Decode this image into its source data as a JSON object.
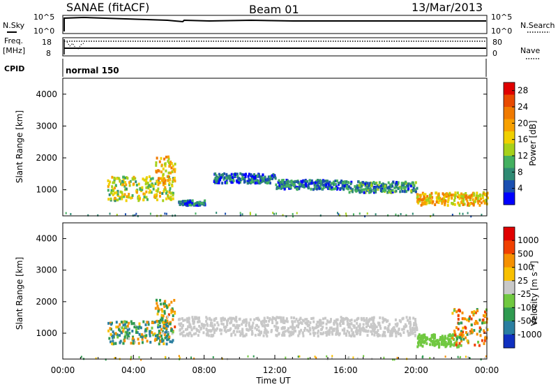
{
  "header": {
    "station": "SANAE (fitACF)",
    "beam": "Beam 01",
    "date": "13/Mar/2013"
  },
  "summary": {
    "nsky_label": "N.Sky",
    "nsearch_label": "N.Search",
    "freq_label": "Freq.",
    "freq_unit": "[MHz]",
    "nave_label": "Nave",
    "cpid_label": "CPID",
    "cpid_value": "normal 150",
    "noise_ticks": [
      "10^5",
      "10^0"
    ],
    "freq_ticks": [
      "18",
      "8"
    ],
    "nave_ticks": [
      "80",
      "0"
    ]
  },
  "chart_data": [
    {
      "type": "heatmap",
      "panel": "power",
      "xlabel": "",
      "ylabel": "Slant Range [km]",
      "xlim": [
        0,
        24
      ],
      "ylim": [
        180,
        4500
      ],
      "yticks": [
        "1000",
        "2000",
        "3000",
        "4000"
      ],
      "colorbar": {
        "label": "Power [dB]",
        "ticks": [
          "4",
          "8",
          "12",
          "16",
          "20",
          "24",
          "28"
        ],
        "colors": [
          "#0000ff",
          "#1a4fb0",
          "#2f8a73",
          "#44b060",
          "#a6d11a",
          "#f0d000",
          "#f7a000",
          "#f07a00",
          "#e84a00",
          "#e00000"
        ]
      },
      "regions": [
        {
          "t": [
            2.5,
            6.2
          ],
          "r": [
            700,
            1450
          ],
          "v": 14
        },
        {
          "t": [
            5.2,
            6.3
          ],
          "r": [
            1200,
            2100
          ],
          "v": 18
        },
        {
          "t": [
            6.5,
            8.0
          ],
          "r": [
            550,
            700
          ],
          "v": 6
        },
        {
          "t": [
            8.5,
            12.0
          ],
          "r": [
            1250,
            1550
          ],
          "v": 5
        },
        {
          "t": [
            12.0,
            16.0
          ],
          "r": [
            1050,
            1350
          ],
          "v": 6
        },
        {
          "t": [
            16.0,
            20.0
          ],
          "r": [
            950,
            1300
          ],
          "v": 8
        },
        {
          "t": [
            20.0,
            24.0
          ],
          "r": [
            550,
            950
          ],
          "v": 18
        }
      ]
    },
    {
      "type": "heatmap",
      "panel": "velocity",
      "xlabel": "Time UT",
      "ylabel": "Slant Range [km]",
      "xlim": [
        0,
        24
      ],
      "ylim": [
        180,
        4500
      ],
      "xticks": [
        "00:00",
        "04:00",
        "08:00",
        "12:00",
        "16:00",
        "20:00",
        "00:00"
      ],
      "yticks": [
        "1000",
        "2000",
        "3000",
        "4000"
      ],
      "colorbar": {
        "label": "Velocity [m s⁻¹]",
        "ticks": [
          "1000",
          "500",
          "100",
          "25",
          "-25",
          "-100",
          "-500",
          "-1000"
        ],
        "colors": [
          "#1030c0",
          "#2a7ea0",
          "#2f9a50",
          "#70c840",
          "#c8c8c8",
          "#f8c000",
          "#f59000",
          "#f04000",
          "#e00000"
        ]
      },
      "regions": [
        {
          "t": [
            2.5,
            6.2
          ],
          "r": [
            700,
            1450
          ],
          "v": 300
        },
        {
          "t": [
            5.2,
            6.3
          ],
          "r": [
            1200,
            2100
          ],
          "v": -100
        },
        {
          "t": [
            6.5,
            20.0
          ],
          "r": [
            950,
            1550
          ],
          "v": 0
        },
        {
          "t": [
            20.0,
            22.5
          ],
          "r": [
            600,
            1000
          ],
          "v": 50
        },
        {
          "t": [
            22.0,
            24.0
          ],
          "r": [
            650,
            1800
          ],
          "v": -300
        }
      ]
    }
  ]
}
